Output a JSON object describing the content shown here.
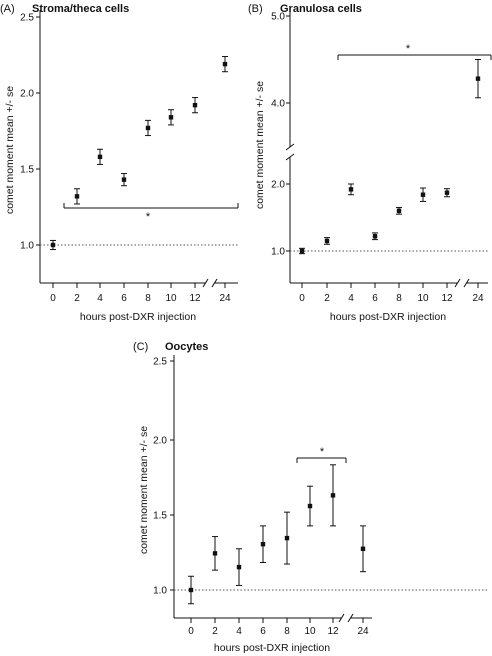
{
  "chart_data": [
    {
      "type": "scatter",
      "panel": "(A)",
      "title": "Stroma/theca cells",
      "xlabel": "hours post-DXR injection",
      "ylabel": "comet moment mean +/- se",
      "categories": [
        "0",
        "2",
        "4",
        "6",
        "8",
        "10",
        "12",
        "24"
      ],
      "x_axis_break": "between 12 and 24",
      "y_ticks": [
        "1.0",
        "1.5",
        "2.0",
        "2.5"
      ],
      "ylim": [
        0.75,
        2.5
      ],
      "reference_line": 1.0,
      "series": [
        {
          "values": [
            1.0,
            1.32,
            1.58,
            1.43,
            1.77,
            1.84,
            1.92,
            2.19
          ],
          "se": [
            0.03,
            0.05,
            0.05,
            0.04,
            0.05,
            0.05,
            0.05,
            0.05
          ]
        }
      ],
      "significance": {
        "label": "*",
        "from": "2",
        "to": "24",
        "placement": "below"
      }
    },
    {
      "type": "scatter",
      "panel": "(B)",
      "title": "Granulosa cells",
      "xlabel": "hours post-DXR injection",
      "ylabel": "comet moment mean +/- se",
      "categories": [
        "0",
        "2",
        "4",
        "6",
        "8",
        "10",
        "12",
        "24"
      ],
      "x_axis_break": "between 12 and 24",
      "y_axis_break": "between 2.0 and 4.0",
      "y_ticks": [
        "1.0",
        "2.0",
        "4.0",
        "5.0"
      ],
      "reference_line": 1.0,
      "series": [
        {
          "values": [
            1.0,
            1.15,
            1.92,
            1.22,
            1.6,
            1.84,
            1.87,
            4.28
          ],
          "se": [
            0.04,
            0.05,
            0.08,
            0.05,
            0.05,
            0.1,
            0.06,
            0.22
          ]
        }
      ],
      "significance": {
        "label": "*",
        "from": "4",
        "to": "24",
        "placement": "above"
      }
    },
    {
      "type": "scatter",
      "panel": "(C)",
      "title": "Oocytes",
      "xlabel": "hours post-DXR injection",
      "ylabel": "comet moment mean +/- se",
      "categories": [
        "0",
        "2",
        "4",
        "6",
        "8",
        "10",
        "12",
        "24"
      ],
      "x_axis_break": "between 12 and 24",
      "y_ticks": [
        "1.0",
        "1.5",
        "2.0",
        "2.5"
      ],
      "ylim": [
        0.8,
        2.5
      ],
      "reference_line": 1.0,
      "series": [
        {
          "values": [
            1.0,
            1.24,
            1.15,
            1.3,
            1.34,
            1.55,
            1.62,
            1.27
          ],
          "se": [
            0.09,
            0.11,
            0.12,
            0.12,
            0.17,
            0.13,
            0.2,
            0.15
          ]
        }
      ],
      "significance": {
        "label": "*",
        "from": "10",
        "to": "12",
        "placement": "above"
      }
    }
  ]
}
